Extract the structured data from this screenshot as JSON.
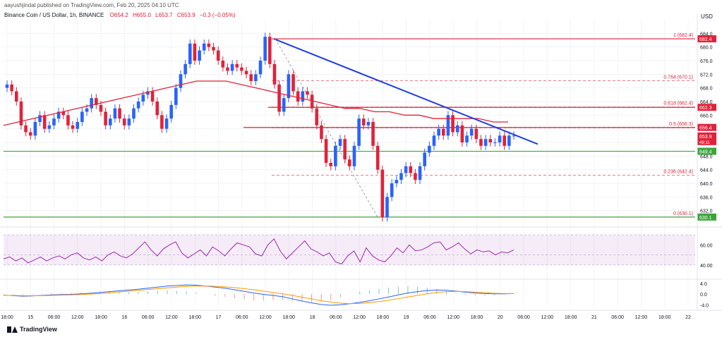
{
  "header": {
    "publisher": "aayushjindal published on TradingView.com, Feb 20, 2025 04:10 UTC",
    "symbol": "Binance Coin / US Dollar, 1h, BINANCE",
    "ohlc": {
      "o": "O654.2",
      "h": "H655.0",
      "l": "L653.7",
      "c": "C653.9",
      "chg": "−0.3 (−0.05%)"
    },
    "currency": "USD"
  },
  "footer": {
    "brand": "TradingView"
  },
  "colors": {
    "up": "#2962ff",
    "down": "#e0223a",
    "ma": "#e0223a",
    "trendline": "#1f3fe0",
    "hline_red": "#e0223a",
    "hline_green": "#3aa63a",
    "rsi": "#9c27b0",
    "rsi_ma": "#f5a623",
    "macd": "#2962ff",
    "signal": "#ff9800"
  },
  "chart_data": [
    {
      "type": "candlestick",
      "title": "Binance Coin / US Dollar, 1h, BINANCE",
      "ylim": [
        628,
        688
      ],
      "y_ticks": [
        632,
        636,
        640,
        644,
        648,
        652,
        656,
        660,
        664,
        668,
        672,
        676,
        680,
        684
      ],
      "x_ticks": [
        "18:00",
        "15",
        "06:00",
        "12:00",
        "18:00",
        "16",
        "06:00",
        "12:00",
        "18:00",
        "17",
        "06:00",
        "12:00",
        "18:00",
        "18",
        "06:00",
        "12:00",
        "18:00",
        "19",
        "06:00",
        "12:00",
        "18:00",
        "20",
        "06:00",
        "12:00",
        "18:00",
        "21",
        "06:00",
        "12:00",
        "18:00",
        "22"
      ],
      "closes": [
        669,
        667,
        664,
        657,
        655,
        654,
        658,
        660,
        656,
        657,
        659,
        661,
        660,
        657,
        656,
        658,
        661,
        662,
        665,
        663,
        661,
        657,
        659,
        662,
        659,
        657,
        659,
        662,
        664,
        666,
        667,
        664,
        660,
        656,
        659,
        663,
        668,
        672,
        675,
        681,
        676,
        679,
        681,
        680,
        679,
        676,
        674,
        673,
        675,
        674,
        673,
        672,
        670,
        672,
        676,
        683,
        675,
        669,
        661,
        665,
        672,
        667,
        664,
        667,
        666,
        662,
        657,
        653,
        646,
        645,
        651,
        653,
        647,
        645,
        651,
        659,
        657,
        658,
        651,
        644,
        630,
        636,
        640,
        641,
        643,
        645,
        643,
        641,
        645,
        649,
        651,
        654,
        656,
        654,
        660,
        655,
        657,
        652,
        654,
        656,
        653,
        651,
        653,
        652,
        652,
        654,
        651,
        654,
        654
      ],
      "ma": {
        "name": "",
        "values": [
          657,
          658,
          659,
          660,
          661,
          662,
          663,
          664,
          665,
          666,
          667,
          668,
          669,
          670,
          670,
          670,
          669,
          668,
          667,
          666,
          665,
          664,
          663,
          662,
          662,
          661,
          661,
          660,
          660,
          659,
          659,
          659,
          659,
          658,
          658
        ]
      },
      "price_labels": [
        "684.0",
        "680.0",
        "676.0",
        "672.0",
        "668.0",
        "664.0",
        "660.0",
        "656.0",
        "652.0",
        "648.0",
        "644.0",
        "640.0",
        "636.0",
        "632.0"
      ],
      "fib_levels": [
        {
          "label": "1 (682.4)",
          "value": 682.4
        },
        {
          "label": "0.764 (670.1)",
          "value": 670.1
        },
        {
          "label": "0.618 (662.4)",
          "value": 662.4
        },
        {
          "label": "0.5 (656.3)",
          "value": 656.3
        },
        {
          "label": "0.236 (642.4)",
          "value": 642.4
        },
        {
          "label": "0 (630.1)",
          "value": 630.1
        }
      ],
      "horizontal_lines": [
        {
          "value": 682.4,
          "label": "682.4",
          "color": "red"
        },
        {
          "value": 662.3,
          "label": "662.3",
          "color": "red"
        },
        {
          "value": 656.4,
          "label": "656.4",
          "color": "red"
        },
        {
          "value": 649.4,
          "label": "649.4",
          "color": "green"
        },
        {
          "value": 630.1,
          "label": "630.1",
          "color": "green"
        }
      ],
      "last_price": {
        "value": 653.9,
        "label": "653.9",
        "countdown": "49:11"
      },
      "trendline": {
        "from": 682.4,
        "to": 651.5
      }
    },
    {
      "type": "line",
      "name": "RSI",
      "ylim": [
        30,
        75
      ],
      "y_ticks": [
        "60.00",
        "40.00"
      ],
      "band": [
        40,
        70
      ],
      "values": [
        46,
        48,
        44,
        47,
        42,
        45,
        48,
        44,
        47,
        49,
        46,
        50,
        52,
        47,
        45,
        48,
        44,
        50,
        53,
        49,
        47,
        51,
        57,
        63,
        55,
        49,
        56,
        60,
        63,
        52,
        47,
        51,
        55,
        49,
        58,
        54,
        49,
        56,
        62,
        60,
        58,
        51,
        49,
        60,
        66,
        54,
        46,
        52,
        58,
        64,
        56,
        53,
        49,
        52,
        43,
        41,
        49,
        54,
        43,
        57,
        49,
        45,
        43,
        49,
        57,
        52,
        60,
        54,
        55,
        58,
        62,
        63,
        55,
        58,
        62,
        56,
        51,
        55,
        53,
        54,
        50,
        53,
        52,
        55
      ]
    },
    {
      "type": "line",
      "name": "MACD",
      "ylim": [
        -5.5,
        4.5
      ],
      "y_ticks": [
        "4.0",
        "0.0",
        "-4.0"
      ],
      "macd": [
        -0.4,
        -0.6,
        -0.8,
        -0.7,
        -0.5,
        -0.3,
        -0.2,
        -0.1,
        0.1,
        0.3,
        0.6,
        0.9,
        1.2,
        1.5,
        1.8,
        2.2,
        2.6,
        3.0,
        3.2,
        3.4,
        3.3,
        3.0,
        2.6,
        2.2,
        1.6,
        1.0,
        0.4,
        -0.1,
        -0.5,
        -1.0,
        -1.8,
        -2.6,
        -3.3,
        -3.9,
        -4.2,
        -4.0,
        -3.6,
        -3.1,
        -2.5,
        -1.8,
        -1.1,
        -0.3,
        0.4,
        0.9,
        1.3,
        1.5,
        1.4,
        1.1,
        0.7,
        0.4,
        0.2,
        0.1,
        0.1,
        0.2
      ],
      "signal": [
        -0.5,
        -0.5,
        -0.6,
        -0.6,
        -0.6,
        -0.5,
        -0.4,
        -0.3,
        -0.2,
        0.0,
        0.2,
        0.5,
        0.8,
        1.1,
        1.4,
        1.7,
        2.0,
        2.3,
        2.6,
        2.9,
        3.0,
        3.0,
        2.9,
        2.7,
        2.4,
        2.0,
        1.6,
        1.1,
        0.6,
        0.1,
        -0.5,
        -1.2,
        -1.8,
        -2.5,
        -3.0,
        -3.4,
        -3.6,
        -3.5,
        -3.2,
        -2.8,
        -2.3,
        -1.7,
        -1.1,
        -0.5,
        0.1,
        0.6,
        0.9,
        1.0,
        0.9,
        0.7,
        0.5,
        0.3,
        0.2,
        0.2
      ]
    }
  ]
}
